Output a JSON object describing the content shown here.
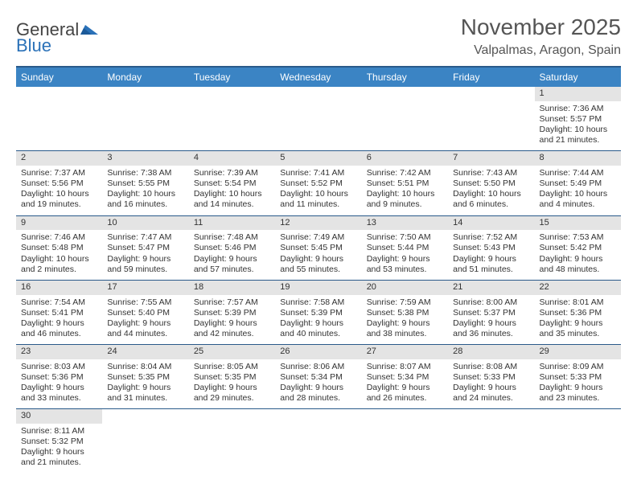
{
  "logo": {
    "text1": "General",
    "text2": "Blue"
  },
  "header": {
    "month": "November 2025",
    "location": "Valpalmas, Aragon, Spain"
  },
  "colors": {
    "header_bg": "#3b84c4",
    "header_border": "#2a5a8a",
    "daynum_bg": "#e4e4e4",
    "text": "#333333",
    "logo_blue": "#2a71b8"
  },
  "weekdays": [
    "Sunday",
    "Monday",
    "Tuesday",
    "Wednesday",
    "Thursday",
    "Friday",
    "Saturday"
  ],
  "weeks": [
    [
      null,
      null,
      null,
      null,
      null,
      null,
      {
        "n": "1",
        "sr": "Sunrise: 7:36 AM",
        "ss": "Sunset: 5:57 PM",
        "dl": "Daylight: 10 hours and 21 minutes."
      }
    ],
    [
      {
        "n": "2",
        "sr": "Sunrise: 7:37 AM",
        "ss": "Sunset: 5:56 PM",
        "dl": "Daylight: 10 hours and 19 minutes."
      },
      {
        "n": "3",
        "sr": "Sunrise: 7:38 AM",
        "ss": "Sunset: 5:55 PM",
        "dl": "Daylight: 10 hours and 16 minutes."
      },
      {
        "n": "4",
        "sr": "Sunrise: 7:39 AM",
        "ss": "Sunset: 5:54 PM",
        "dl": "Daylight: 10 hours and 14 minutes."
      },
      {
        "n": "5",
        "sr": "Sunrise: 7:41 AM",
        "ss": "Sunset: 5:52 PM",
        "dl": "Daylight: 10 hours and 11 minutes."
      },
      {
        "n": "6",
        "sr": "Sunrise: 7:42 AM",
        "ss": "Sunset: 5:51 PM",
        "dl": "Daylight: 10 hours and 9 minutes."
      },
      {
        "n": "7",
        "sr": "Sunrise: 7:43 AM",
        "ss": "Sunset: 5:50 PM",
        "dl": "Daylight: 10 hours and 6 minutes."
      },
      {
        "n": "8",
        "sr": "Sunrise: 7:44 AM",
        "ss": "Sunset: 5:49 PM",
        "dl": "Daylight: 10 hours and 4 minutes."
      }
    ],
    [
      {
        "n": "9",
        "sr": "Sunrise: 7:46 AM",
        "ss": "Sunset: 5:48 PM",
        "dl": "Daylight: 10 hours and 2 minutes."
      },
      {
        "n": "10",
        "sr": "Sunrise: 7:47 AM",
        "ss": "Sunset: 5:47 PM",
        "dl": "Daylight: 9 hours and 59 minutes."
      },
      {
        "n": "11",
        "sr": "Sunrise: 7:48 AM",
        "ss": "Sunset: 5:46 PM",
        "dl": "Daylight: 9 hours and 57 minutes."
      },
      {
        "n": "12",
        "sr": "Sunrise: 7:49 AM",
        "ss": "Sunset: 5:45 PM",
        "dl": "Daylight: 9 hours and 55 minutes."
      },
      {
        "n": "13",
        "sr": "Sunrise: 7:50 AM",
        "ss": "Sunset: 5:44 PM",
        "dl": "Daylight: 9 hours and 53 minutes."
      },
      {
        "n": "14",
        "sr": "Sunrise: 7:52 AM",
        "ss": "Sunset: 5:43 PM",
        "dl": "Daylight: 9 hours and 51 minutes."
      },
      {
        "n": "15",
        "sr": "Sunrise: 7:53 AM",
        "ss": "Sunset: 5:42 PM",
        "dl": "Daylight: 9 hours and 48 minutes."
      }
    ],
    [
      {
        "n": "16",
        "sr": "Sunrise: 7:54 AM",
        "ss": "Sunset: 5:41 PM",
        "dl": "Daylight: 9 hours and 46 minutes."
      },
      {
        "n": "17",
        "sr": "Sunrise: 7:55 AM",
        "ss": "Sunset: 5:40 PM",
        "dl": "Daylight: 9 hours and 44 minutes."
      },
      {
        "n": "18",
        "sr": "Sunrise: 7:57 AM",
        "ss": "Sunset: 5:39 PM",
        "dl": "Daylight: 9 hours and 42 minutes."
      },
      {
        "n": "19",
        "sr": "Sunrise: 7:58 AM",
        "ss": "Sunset: 5:39 PM",
        "dl": "Daylight: 9 hours and 40 minutes."
      },
      {
        "n": "20",
        "sr": "Sunrise: 7:59 AM",
        "ss": "Sunset: 5:38 PM",
        "dl": "Daylight: 9 hours and 38 minutes."
      },
      {
        "n": "21",
        "sr": "Sunrise: 8:00 AM",
        "ss": "Sunset: 5:37 PM",
        "dl": "Daylight: 9 hours and 36 minutes."
      },
      {
        "n": "22",
        "sr": "Sunrise: 8:01 AM",
        "ss": "Sunset: 5:36 PM",
        "dl": "Daylight: 9 hours and 35 minutes."
      }
    ],
    [
      {
        "n": "23",
        "sr": "Sunrise: 8:03 AM",
        "ss": "Sunset: 5:36 PM",
        "dl": "Daylight: 9 hours and 33 minutes."
      },
      {
        "n": "24",
        "sr": "Sunrise: 8:04 AM",
        "ss": "Sunset: 5:35 PM",
        "dl": "Daylight: 9 hours and 31 minutes."
      },
      {
        "n": "25",
        "sr": "Sunrise: 8:05 AM",
        "ss": "Sunset: 5:35 PM",
        "dl": "Daylight: 9 hours and 29 minutes."
      },
      {
        "n": "26",
        "sr": "Sunrise: 8:06 AM",
        "ss": "Sunset: 5:34 PM",
        "dl": "Daylight: 9 hours and 28 minutes."
      },
      {
        "n": "27",
        "sr": "Sunrise: 8:07 AM",
        "ss": "Sunset: 5:34 PM",
        "dl": "Daylight: 9 hours and 26 minutes."
      },
      {
        "n": "28",
        "sr": "Sunrise: 8:08 AM",
        "ss": "Sunset: 5:33 PM",
        "dl": "Daylight: 9 hours and 24 minutes."
      },
      {
        "n": "29",
        "sr": "Sunrise: 8:09 AM",
        "ss": "Sunset: 5:33 PM",
        "dl": "Daylight: 9 hours and 23 minutes."
      }
    ],
    [
      {
        "n": "30",
        "sr": "Sunrise: 8:11 AM",
        "ss": "Sunset: 5:32 PM",
        "dl": "Daylight: 9 hours and 21 minutes."
      },
      null,
      null,
      null,
      null,
      null,
      null
    ]
  ]
}
